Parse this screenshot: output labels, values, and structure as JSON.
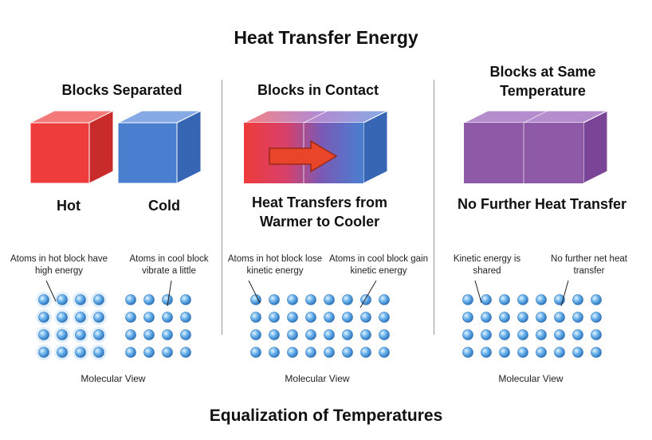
{
  "title": "Heat Transfer Energy",
  "footer": "Equalization of Temperatures",
  "panels": [
    {
      "heading": "Blocks Separated",
      "labels": [
        "Hot",
        "Cold"
      ],
      "notes": [
        "Atoms in hot block have high energy",
        "Atoms in cool block vibrate a little"
      ],
      "molecular_label": "Molecular View"
    },
    {
      "heading": "Blocks in Contact",
      "caption": "Heat Transfers from Warmer to Cooler",
      "notes": [
        "Atoms in hot block lose kinetic energy",
        "Atoms in cool block gain kinetic energy"
      ],
      "molecular_label": "Molecular View"
    },
    {
      "heading": "Blocks at Same Temperature",
      "caption": "No Further Heat Transfer",
      "notes": [
        "Kinetic energy is shared",
        "No further net heat transfer"
      ],
      "molecular_label": "Molecular View"
    }
  ],
  "colors": {
    "hot": "#ee3b3b",
    "cold": "#4a7fd0",
    "equal": "#8e5aa8",
    "arrow": "#e8452a",
    "atom": "#5aa7e6"
  }
}
